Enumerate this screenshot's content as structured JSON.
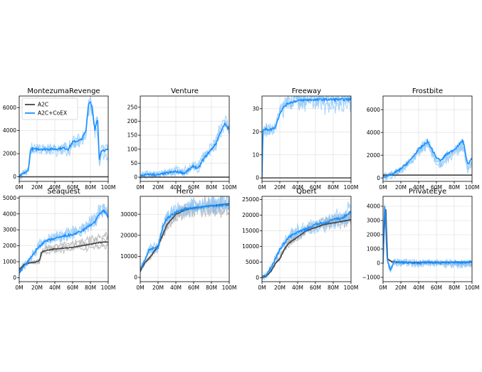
{
  "figure": {
    "legend": {
      "entries": [
        {
          "label": "A2C",
          "color": "#444444"
        },
        {
          "label": "A2C+CoEX",
          "color": "#1e90ff"
        }
      ],
      "placement": "upper-left of first panel"
    }
  },
  "colors": {
    "a2c": "#444444",
    "a2c_runs": "#aaaaaa",
    "coex": "#1e90ff",
    "coex_runs": "#90c8f8"
  },
  "chart_data": [
    {
      "type": "line",
      "title": "MontezumaRevenge",
      "xlim": [
        0,
        100
      ],
      "ylim": [
        -400,
        7000
      ],
      "xticks": [
        0,
        20,
        40,
        60,
        80,
        100
      ],
      "xtick_labels": [
        "0M",
        "20M",
        "40M",
        "60M",
        "80M",
        "100M"
      ],
      "yticks": [
        0,
        2000,
        4000,
        6000
      ],
      "ytick_labels": [
        "0",
        "2000",
        "4000",
        "6000"
      ],
      "series": [
        {
          "name": "A2C",
          "x": [
            0,
            100
          ],
          "y": [
            0,
            0
          ]
        },
        {
          "name": "A2C+CoEX",
          "x": [
            0,
            5,
            10,
            13,
            15,
            20,
            30,
            40,
            50,
            55,
            60,
            65,
            70,
            75,
            78,
            80,
            82,
            85,
            88,
            90,
            92,
            95,
            100
          ],
          "y": [
            0,
            300,
            500,
            2400,
            2400,
            2400,
            2400,
            2400,
            2500,
            2400,
            3000,
            3100,
            3200,
            4000,
            6400,
            6500,
            6000,
            4000,
            5000,
            1500,
            2300,
            2300,
            2300
          ]
        }
      ]
    },
    {
      "type": "line",
      "title": "Venture",
      "xlim": [
        0,
        100
      ],
      "ylim": [
        -15,
        290
      ],
      "xticks": [
        0,
        20,
        40,
        60,
        80,
        100
      ],
      "xtick_labels": [
        "0M",
        "20M",
        "40M",
        "60M",
        "80M",
        "100M"
      ],
      "yticks": [
        0,
        50,
        100,
        150,
        200,
        250
      ],
      "ytick_labels": [
        "0",
        "50",
        "100",
        "150",
        "200",
        "250"
      ],
      "series": [
        {
          "name": "A2C",
          "x": [
            0,
            100
          ],
          "y": [
            0,
            0
          ]
        },
        {
          "name": "A2C+CoEX",
          "x": [
            0,
            10,
            20,
            30,
            40,
            50,
            60,
            65,
            70,
            75,
            80,
            85,
            90,
            95,
            100
          ],
          "y": [
            5,
            10,
            8,
            15,
            20,
            15,
            40,
            30,
            60,
            80,
            100,
            120,
            160,
            190,
            170
          ]
        }
      ]
    },
    {
      "type": "line",
      "title": "Freeway",
      "xlim": [
        0,
        100
      ],
      "ylim": [
        -1.5,
        35.5
      ],
      "xticks": [
        0,
        20,
        40,
        60,
        80,
        100
      ],
      "xtick_labels": [
        "0M",
        "20M",
        "40M",
        "60M",
        "80M",
        "100M"
      ],
      "yticks": [
        0,
        10,
        20,
        30
      ],
      "ytick_labels": [
        "0",
        "10",
        "20",
        "30"
      ],
      "series": [
        {
          "name": "A2C",
          "x": [
            0,
            100
          ],
          "y": [
            0,
            0
          ]
        },
        {
          "name": "A2C+CoEX",
          "x": [
            0,
            1,
            5,
            10,
            15,
            20,
            25,
            30,
            40,
            50,
            60,
            70,
            80,
            100
          ],
          "y": [
            0,
            21,
            21,
            21,
            22,
            28,
            31,
            32.5,
            33.5,
            33.8,
            33.9,
            34,
            34,
            34
          ]
        }
      ]
    },
    {
      "type": "line",
      "title": "Frostbite",
      "xlim": [
        0,
        100
      ],
      "ylim": [
        -300,
        7200
      ],
      "xticks": [
        0,
        20,
        40,
        60,
        80,
        100
      ],
      "xtick_labels": [
        "0M",
        "20M",
        "40M",
        "60M",
        "80M",
        "100M"
      ],
      "yticks": [
        0,
        2000,
        4000,
        6000
      ],
      "ytick_labels": [
        "0",
        "2000",
        "4000",
        "6000"
      ],
      "series": [
        {
          "name": "A2C",
          "x": [
            0,
            100
          ],
          "y": [
            250,
            250
          ]
        },
        {
          "name": "A2C+CoEX",
          "x": [
            0,
            10,
            20,
            30,
            40,
            50,
            55,
            60,
            65,
            70,
            80,
            90,
            95,
            100
          ],
          "y": [
            100,
            300,
            800,
            1500,
            2500,
            3200,
            2500,
            1800,
            1500,
            2000,
            2500,
            3300,
            1200,
            1700
          ]
        }
      ]
    },
    {
      "type": "line",
      "title": "Seaquest",
      "xlim": [
        0,
        100
      ],
      "ylim": [
        -250,
        5100
      ],
      "xticks": [
        0,
        20,
        40,
        60,
        80,
        100
      ],
      "xtick_labels": [
        "0M",
        "20M",
        "40M",
        "60M",
        "80M",
        "100M"
      ],
      "yticks": [
        0,
        1000,
        2000,
        3000,
        4000,
        5000
      ],
      "ytick_labels": [
        "0",
        "1000",
        "2000",
        "3000",
        "4000",
        "5000"
      ],
      "series": [
        {
          "name": "A2C",
          "x": [
            0,
            5,
            10,
            15,
            20,
            23,
            25,
            30,
            40,
            50,
            60,
            70,
            80,
            90,
            100
          ],
          "y": [
            500,
            800,
            900,
            950,
            1000,
            1100,
            1600,
            1700,
            1800,
            1850,
            1900,
            2000,
            2100,
            2200,
            2250
          ]
        },
        {
          "name": "A2C+CoEX",
          "x": [
            0,
            5,
            10,
            15,
            20,
            25,
            30,
            40,
            50,
            60,
            70,
            75,
            80,
            85,
            90,
            95,
            100
          ],
          "y": [
            300,
            700,
            1000,
            1400,
            1800,
            2100,
            2300,
            2450,
            2600,
            2700,
            2900,
            3100,
            3300,
            3500,
            4000,
            4200,
            3800
          ]
        }
      ]
    },
    {
      "type": "line",
      "title": "Hero",
      "xlim": [
        0,
        100
      ],
      "ylim": [
        -2000,
        38500
      ],
      "xticks": [
        0,
        20,
        40,
        60,
        80,
        100
      ],
      "xtick_labels": [
        "0M",
        "20M",
        "40M",
        "60M",
        "80M",
        "100M"
      ],
      "yticks": [
        0,
        10000,
        20000,
        30000
      ],
      "ytick_labels": [
        "0",
        "10000",
        "20000",
        "30000"
      ],
      "series": [
        {
          "name": "A2C",
          "x": [
            0,
            5,
            10,
            15,
            20,
            25,
            30,
            40,
            50,
            60,
            70,
            80,
            90,
            100
          ],
          "y": [
            3000,
            7000,
            9000,
            12000,
            15000,
            20000,
            25000,
            30000,
            32000,
            33000,
            33500,
            34000,
            34500,
            35000
          ]
        },
        {
          "name": "A2C+CoEX",
          "x": [
            0,
            5,
            10,
            15,
            20,
            25,
            30,
            40,
            50,
            60,
            70,
            80,
            90,
            100
          ],
          "y": [
            4000,
            8000,
            13000,
            14000,
            14000,
            24000,
            28000,
            31000,
            32500,
            33000,
            33500,
            34000,
            34200,
            34500
          ]
        }
      ]
    },
    {
      "type": "line",
      "title": "Qbert",
      "xlim": [
        0,
        100
      ],
      "ylim": [
        -1300,
        26000
      ],
      "xticks": [
        0,
        20,
        40,
        60,
        80,
        100
      ],
      "xtick_labels": [
        "0M",
        "20M",
        "40M",
        "60M",
        "80M",
        "100M"
      ],
      "yticks": [
        0,
        5000,
        10000,
        15000,
        20000,
        25000
      ],
      "ytick_labels": [
        "0",
        "5000",
        "10000",
        "15000",
        "20000",
        "25000"
      ],
      "series": [
        {
          "name": "A2C",
          "x": [
            0,
            5,
            10,
            15,
            20,
            25,
            30,
            40,
            50,
            60,
            70,
            80,
            90,
            100
          ],
          "y": [
            0,
            500,
            2000,
            4500,
            6000,
            9000,
            11000,
            13000,
            15000,
            16000,
            17000,
            17500,
            18000,
            18500
          ]
        },
        {
          "name": "A2C+CoEX",
          "x": [
            0,
            5,
            10,
            15,
            20,
            25,
            30,
            40,
            50,
            60,
            70,
            80,
            90,
            100
          ],
          "y": [
            0,
            1000,
            3000,
            6000,
            9000,
            11000,
            13000,
            14500,
            15500,
            17000,
            17500,
            18500,
            19000,
            21000
          ]
        }
      ]
    },
    {
      "type": "line",
      "title": "PrivateEye",
      "xlim": [
        0,
        100
      ],
      "ylim": [
        -1300,
        4700
      ],
      "xticks": [
        0,
        20,
        40,
        60,
        80,
        100
      ],
      "xtick_labels": [
        "0M",
        "20M",
        "40M",
        "60M",
        "80M",
        "100M"
      ],
      "yticks": [
        -1000,
        0,
        1000,
        2000,
        3000,
        4000
      ],
      "ytick_labels": [
        "−1000",
        "0",
        "1000",
        "2000",
        "3000",
        "4000"
      ],
      "series": [
        {
          "name": "A2C",
          "x": [
            0,
            1,
            3,
            5,
            10,
            20,
            40,
            60,
            80,
            100
          ],
          "y": [
            0,
            2000,
            4000,
            300,
            100,
            50,
            50,
            50,
            60,
            60
          ]
        },
        {
          "name": "A2C+CoEX",
          "x": [
            0,
            1,
            2,
            3,
            4,
            5,
            8,
            12,
            20,
            30,
            40,
            50,
            60,
            70,
            80,
            90,
            100
          ],
          "y": [
            0,
            2500,
            4200,
            3000,
            800,
            200,
            -500,
            100,
            50,
            60,
            0,
            50,
            40,
            50,
            60,
            40,
            100
          ]
        }
      ]
    }
  ]
}
